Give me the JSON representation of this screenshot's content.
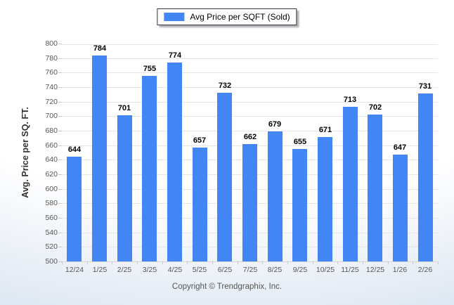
{
  "legend": {
    "label": "Avg Price per SQFT (Sold)",
    "swatch_color": "#4285F4"
  },
  "footer": {
    "copyright": "Copyright © Trendgraphix, Inc."
  },
  "chart_data": {
    "type": "bar",
    "title": "",
    "categories": [
      "12/24",
      "1/25",
      "2/25",
      "3/25",
      "4/25",
      "5/25",
      "6/25",
      "7/25",
      "8/25",
      "9/25",
      "10/25",
      "11/25",
      "12/25",
      "1/26",
      "2/26"
    ],
    "values": [
      644,
      784,
      701,
      755,
      774,
      657,
      732,
      662,
      679,
      655,
      671,
      713,
      702,
      647,
      731
    ],
    "xlabel": "",
    "ylabel": "Avg. Price per SQ. FT.",
    "ylim": [
      500,
      800
    ],
    "ytick_step": 20,
    "grid": true,
    "legend_position": "top-center",
    "bar_color": "#4285F4",
    "value_labels": true
  },
  "colors": {
    "gridline": "#e6e6e6",
    "baseline": "#d4d4d4",
    "tick_mark": "#c8c8c8",
    "tick_label": "#555555",
    "value_label": "#000000",
    "background_edge": "#d9e3f0"
  }
}
